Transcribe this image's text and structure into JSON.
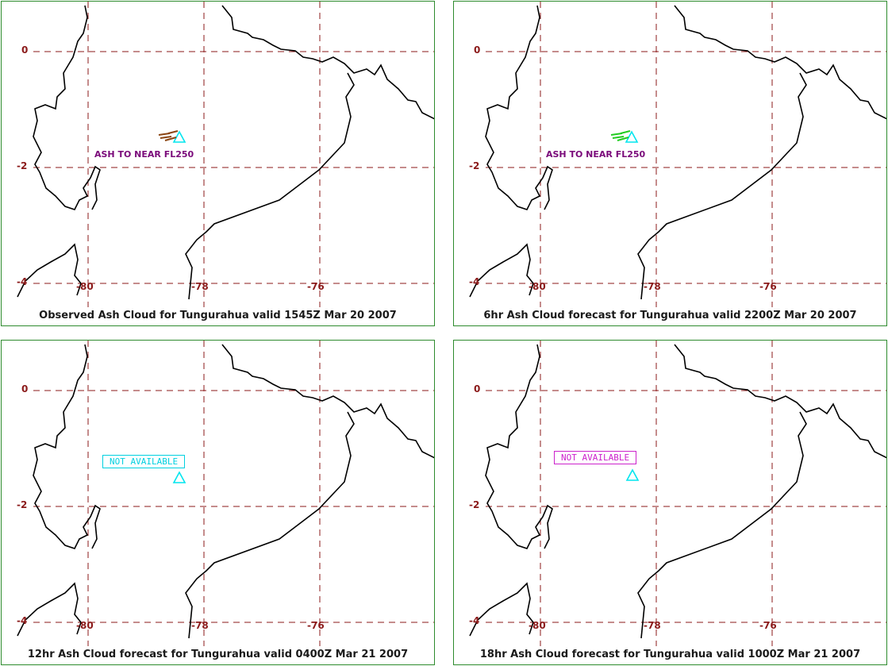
{
  "axis_labels": {
    "lat_0": "0",
    "lat_2": "-2",
    "lat_4": "-4",
    "lon_80": "-80",
    "lon_78": "-78",
    "lon_76": "-76"
  },
  "panels": [
    {
      "caption": "Observed Ash Cloud for Tungurahua valid 1545Z Mar 20 2007",
      "ash_label": "ASH TO NEAR FL250",
      "plume_color": "#8b4513",
      "volcano_color": "#00e5ee"
    },
    {
      "caption": "6hr Ash Cloud forecast for Tungurahua valid 2200Z Mar 20 2007",
      "ash_label": "ASH TO NEAR FL250",
      "plume_color": "#22cc22",
      "volcano_color": "#00e5ee"
    },
    {
      "caption": "12hr Ash Cloud forecast for Tungurahua valid 0400Z Mar 21 2007",
      "status_box": "NOT AVAILABLE",
      "status_color": "#00d0e0",
      "volcano_color": "#00e5ee"
    },
    {
      "caption": "18hr Ash Cloud forecast for Tungurahua valid 1000Z Mar 21 2007",
      "status_box": "NOT AVAILABLE",
      "status_color": "#cc22cc",
      "volcano_color": "#00e5ee"
    }
  ]
}
